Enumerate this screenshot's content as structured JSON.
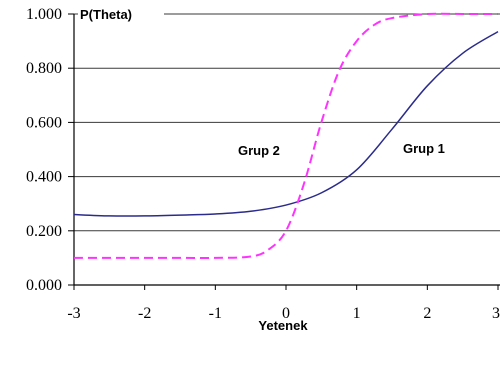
{
  "chart_data": {
    "type": "line",
    "ylabel": "P(Theta)",
    "xlabel": "Yetenek",
    "xlim": [
      -3,
      3
    ],
    "ylim": [
      0,
      1
    ],
    "x_ticks": [
      "-3",
      "-2",
      "-1",
      "0",
      "1",
      "2",
      "3"
    ],
    "y_ticks": [
      "0.000",
      "0.200",
      "0.400",
      "0.600",
      "0.800",
      "1.000"
    ],
    "grid": "horizontal",
    "legend": "none",
    "series": [
      {
        "name": "Grup 1",
        "color": "#2b2b8c",
        "style": "solid",
        "x": [
          -3,
          -2.5,
          -2,
          -1.5,
          -1,
          -0.5,
          0,
          0.5,
          1,
          1.5,
          2,
          2.5,
          3
        ],
        "y": [
          0.26,
          0.255,
          0.255,
          0.258,
          0.262,
          0.272,
          0.295,
          0.34,
          0.425,
          0.575,
          0.735,
          0.855,
          0.935
        ]
      },
      {
        "name": "Grup 2",
        "color": "#ff33ff",
        "style": "dashed",
        "x": [
          -3,
          -2.5,
          -2,
          -1.5,
          -1,
          -0.5,
          -0.25,
          0,
          0.25,
          0.5,
          0.75,
          1,
          1.25,
          1.5,
          2,
          2.5,
          3
        ],
        "y": [
          0.1,
          0.1,
          0.1,
          0.1,
          0.1,
          0.105,
          0.13,
          0.2,
          0.37,
          0.6,
          0.79,
          0.9,
          0.96,
          0.985,
          1.0,
          1.0,
          1.0
        ]
      }
    ]
  }
}
